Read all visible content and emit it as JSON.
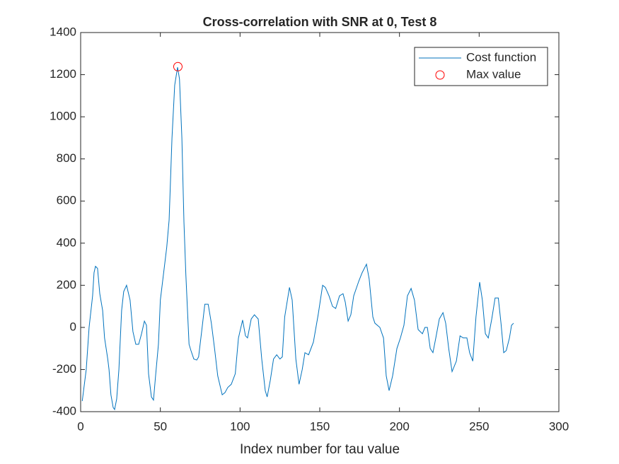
{
  "chart_data": {
    "type": "line",
    "title": "Cross-correlation with SNR at 0, Test 8",
    "xlabel": "Index number for tau value",
    "xlim": [
      0,
      300
    ],
    "xticks": [
      0,
      50,
      100,
      150,
      200,
      250,
      300
    ],
    "ylim": [
      -400,
      1400
    ],
    "yticks": [
      -400,
      -200,
      0,
      200,
      400,
      600,
      800,
      1000,
      1200,
      1400
    ],
    "legend": "northeast",
    "series": [
      {
        "name": "Cost function",
        "color": "#0072bd",
        "style": "line",
        "x": [
          1,
          3.5,
          5.3,
          7.5,
          8.4,
          9.3,
          10.6,
          12,
          13.8,
          15,
          17,
          17.8,
          19,
          20.4,
          21.3,
          22.6,
          24,
          25.7,
          27,
          28.8,
          31,
          32.8,
          34.6,
          36.4,
          38.2,
          40,
          41.3,
          42.6,
          44.4,
          45.7,
          47,
          48.8,
          50,
          52.4,
          54,
          55.5,
          57.3,
          59,
          60.8,
          62,
          63.5,
          64.8,
          66,
          68,
          69.2,
          71,
          72.8,
          74,
          75.9,
          77.9,
          80,
          82,
          84,
          86,
          88.8,
          90.5,
          92.3,
          94.5,
          97,
          99,
          101.6,
          103.4,
          104.7,
          107,
          109,
          111.4,
          113.6,
          115.8,
          117,
          119,
          121,
          123,
          125,
          126.5,
          128,
          131,
          132.7,
          135,
          137,
          139,
          140.7,
          143,
          146,
          149,
          151.8,
          153.5,
          155.8,
          158,
          160,
          162.4,
          164.6,
          166,
          167.8,
          169.5,
          171.3,
          174.5,
          176.6,
          179.3,
          181,
          183.3,
          184.6,
          187.7,
          190,
          191.7,
          193.5,
          195.7,
          198.4,
          200.6,
          202.8,
          205,
          207.3,
          209.4,
          211.7,
          214.4,
          216,
          217.5,
          219.3,
          221,
          222.8,
          225,
          227.3,
          229,
          230.9,
          233,
          235.7,
          238,
          240,
          242.3,
          244,
          246,
          248,
          250.3,
          252,
          253.9,
          255.7,
          257.9,
          260,
          262,
          263.7,
          265.4,
          267,
          269,
          270.3,
          271.6
        ],
        "values": [
          -350,
          -200,
          0,
          150,
          260,
          290,
          280,
          160,
          80,
          -50,
          -150,
          -200,
          -320,
          -380,
          -390,
          -340,
          -200,
          80,
          170,
          200,
          130,
          -20,
          -80,
          -80,
          -30,
          30,
          10,
          -220,
          -330,
          -345,
          -230,
          -80,
          130,
          280,
          380,
          510,
          900,
          1150,
          1235,
          1180,
          900,
          500,
          250,
          -80,
          -110,
          -150,
          -155,
          -140,
          -20,
          110,
          110,
          20,
          -100,
          -230,
          -320,
          -310,
          -285,
          -270,
          -220,
          -50,
          35,
          -40,
          -50,
          40,
          60,
          40,
          -150,
          -300,
          -330,
          -250,
          -150,
          -130,
          -150,
          -140,
          50,
          190,
          130,
          -150,
          -270,
          -200,
          -120,
          -130,
          -70,
          60,
          200,
          190,
          150,
          100,
          90,
          150,
          160,
          120,
          30,
          60,
          150,
          220,
          260,
          300,
          230,
          50,
          20,
          0,
          -50,
          -230,
          -300,
          -230,
          -100,
          -50,
          10,
          150,
          185,
          130,
          -10,
          -30,
          0,
          0,
          -100,
          -120,
          -50,
          40,
          70,
          20,
          -100,
          -210,
          -160,
          -40,
          -50,
          -50,
          -120,
          -160,
          50,
          215,
          130,
          -30,
          -50,
          40,
          140,
          140,
          20,
          -120,
          -110,
          -50,
          10,
          20
        ]
      },
      {
        "name": "Max value",
        "color": "#ff0000",
        "style": "marker",
        "x": [
          61
        ],
        "values": [
          1238
        ]
      }
    ]
  }
}
